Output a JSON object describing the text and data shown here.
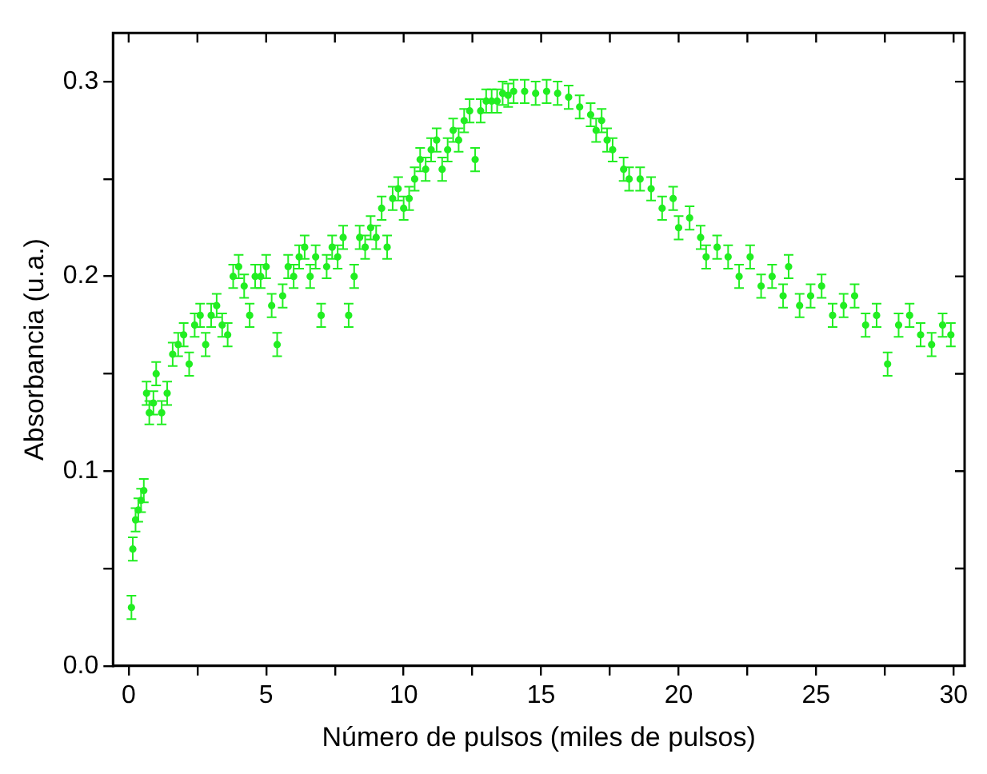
{
  "chart_data": {
    "type": "scatter",
    "xlabel": "Número de pulsos (miles de pulsos)",
    "ylabel": "Absorbancia (u.a.)",
    "xlim": [
      -0.57,
      30.4
    ],
    "ylim": [
      0,
      0.325
    ],
    "xticks": [
      0,
      {
        "value": 2.5,
        "label": null
      },
      5,
      {
        "value": 7.5,
        "label": null
      },
      10,
      {
        "value": 12.5,
        "label": null
      },
      15,
      {
        "value": 17.5,
        "label": null
      },
      20,
      {
        "value": 22.5,
        "label": null
      },
      25,
      {
        "value": 27.5,
        "label": null
      },
      30
    ],
    "yticks": [
      {
        "value": 0,
        "label": "0.0"
      },
      {
        "value": 0.05,
        "label": null
      },
      0.1,
      {
        "value": 0.15,
        "label": null
      },
      0.2,
      {
        "value": 0.25,
        "label": null
      },
      0.3
    ],
    "grid": false,
    "legend": false,
    "marker": "circle",
    "series": [
      {
        "color": "#22ee22",
        "x": [
          0.1,
          0.15,
          0.25,
          0.35,
          0.45,
          0.55,
          0.65,
          0.75,
          0.9,
          1.0,
          1.2,
          1.4,
          1.6,
          1.8,
          2.0,
          2.2,
          2.4,
          2.6,
          2.8,
          3.0,
          3.2,
          3.4,
          3.6,
          3.8,
          4.0,
          4.2,
          4.4,
          4.6,
          4.8,
          5.0,
          5.2,
          5.4,
          5.6,
          5.8,
          6.0,
          6.2,
          6.4,
          6.6,
          6.8,
          7.0,
          7.2,
          7.4,
          7.6,
          7.8,
          8.0,
          8.2,
          8.4,
          8.6,
          8.8,
          9.0,
          9.2,
          9.4,
          9.6,
          9.8,
          10.0,
          10.2,
          10.4,
          10.6,
          10.8,
          11.0,
          11.2,
          11.4,
          11.6,
          11.8,
          12.0,
          12.2,
          12.4,
          12.6,
          12.8,
          13.0,
          13.2,
          13.4,
          13.6,
          13.8,
          14.0,
          14.4,
          14.8,
          15.2,
          15.6,
          16.0,
          16.4,
          16.8,
          17.0,
          17.2,
          17.4,
          17.6,
          18.0,
          18.2,
          18.6,
          19.0,
          19.4,
          19.8,
          20.0,
          20.4,
          20.8,
          21.0,
          21.4,
          21.8,
          22.2,
          22.6,
          23.0,
          23.4,
          23.8,
          24.0,
          24.4,
          24.8,
          25.2,
          25.6,
          26.0,
          26.4,
          26.8,
          27.2,
          27.6,
          28.0,
          28.4,
          28.8,
          29.2,
          29.6,
          29.9
        ],
        "values": [
          0.03,
          0.06,
          0.075,
          0.08,
          0.085,
          0.09,
          0.14,
          0.13,
          0.135,
          0.15,
          0.13,
          0.14,
          0.16,
          0.165,
          0.17,
          0.155,
          0.175,
          0.18,
          0.165,
          0.18,
          0.185,
          0.175,
          0.17,
          0.2,
          0.205,
          0.195,
          0.18,
          0.2,
          0.2,
          0.205,
          0.185,
          0.165,
          0.19,
          0.205,
          0.2,
          0.21,
          0.215,
          0.2,
          0.21,
          0.18,
          0.205,
          0.215,
          0.21,
          0.22,
          0.18,
          0.2,
          0.22,
          0.215,
          0.225,
          0.22,
          0.235,
          0.215,
          0.24,
          0.245,
          0.235,
          0.24,
          0.25,
          0.26,
          0.255,
          0.265,
          0.27,
          0.255,
          0.265,
          0.275,
          0.27,
          0.28,
          0.285,
          0.26,
          0.285,
          0.29,
          0.29,
          0.29,
          0.294,
          0.293,
          0.295,
          0.295,
          0.294,
          0.295,
          0.294,
          0.292,
          0.287,
          0.283,
          0.275,
          0.28,
          0.27,
          0.265,
          0.255,
          0.25,
          0.25,
          0.245,
          0.235,
          0.24,
          0.225,
          0.23,
          0.22,
          0.21,
          0.215,
          0.21,
          0.2,
          0.21,
          0.195,
          0.2,
          0.19,
          0.205,
          0.185,
          0.19,
          0.195,
          0.18,
          0.185,
          0.19,
          0.175,
          0.18,
          0.155,
          0.175,
          0.18,
          0.17,
          0.165,
          0.175,
          0.17
        ],
        "errors": [
          0.006,
          0.006,
          0.006,
          0.006,
          0.006,
          0.006,
          0.006,
          0.006,
          0.006,
          0.006,
          0.006,
          0.006,
          0.006,
          0.006,
          0.006,
          0.006,
          0.006,
          0.006,
          0.006,
          0.006,
          0.006,
          0.006,
          0.006,
          0.006,
          0.006,
          0.006,
          0.006,
          0.006,
          0.006,
          0.006,
          0.006,
          0.006,
          0.006,
          0.006,
          0.006,
          0.006,
          0.006,
          0.006,
          0.006,
          0.006,
          0.006,
          0.006,
          0.006,
          0.006,
          0.006,
          0.006,
          0.006,
          0.006,
          0.006,
          0.006,
          0.006,
          0.006,
          0.006,
          0.006,
          0.006,
          0.006,
          0.006,
          0.006,
          0.006,
          0.006,
          0.006,
          0.006,
          0.006,
          0.006,
          0.006,
          0.006,
          0.006,
          0.006,
          0.006,
          0.006,
          0.006,
          0.006,
          0.006,
          0.006,
          0.006,
          0.006,
          0.006,
          0.006,
          0.006,
          0.006,
          0.006,
          0.006,
          0.006,
          0.006,
          0.006,
          0.006,
          0.006,
          0.006,
          0.006,
          0.006,
          0.006,
          0.006,
          0.006,
          0.006,
          0.006,
          0.006,
          0.006,
          0.006,
          0.006,
          0.006,
          0.006,
          0.006,
          0.006,
          0.006,
          0.006,
          0.006,
          0.006,
          0.006,
          0.006,
          0.006,
          0.006,
          0.006,
          0.006,
          0.006,
          0.006,
          0.006,
          0.006,
          0.006,
          0.006
        ]
      }
    ]
  }
}
